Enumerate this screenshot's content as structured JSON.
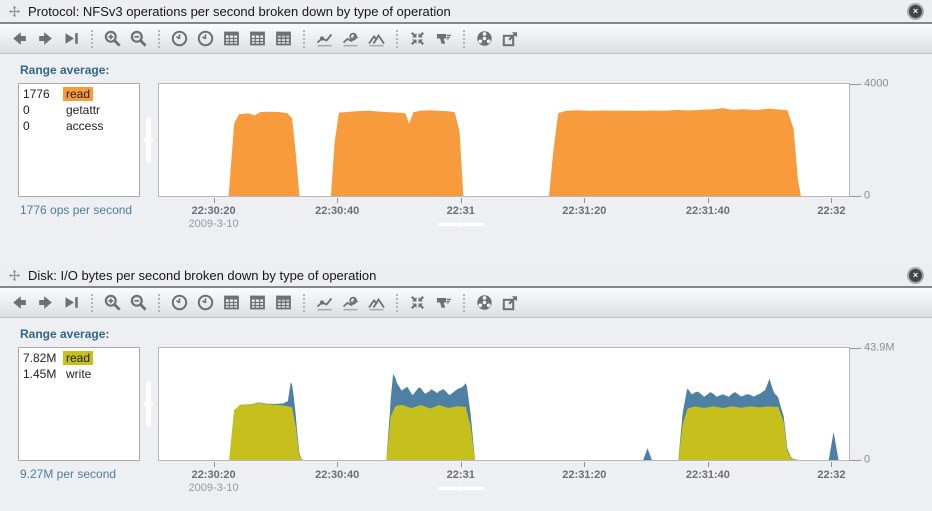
{
  "ui": {
    "close_glyph": "×"
  },
  "colors": {
    "nfs_read": "#F89B3C",
    "disk_read": "#C6C01C",
    "disk_write": "#4E80A4",
    "accent_text": "#336685",
    "summary_text": "#4E7E9B"
  },
  "toolbar": {
    "groups": [
      [
        {
          "name": "step-back",
          "icon": "arrow-left"
        },
        {
          "name": "step-forward",
          "icon": "arrow-right"
        },
        {
          "name": "forward-to-now",
          "icon": "arrow-end"
        }
      ],
      [
        {
          "name": "zoom-in",
          "icon": "magnifier-plus"
        },
        {
          "name": "zoom-out",
          "icon": "magnifier-minus"
        }
      ],
      [
        {
          "name": "show-one-minute",
          "icon": "clock"
        },
        {
          "name": "show-one-hour",
          "icon": "clock"
        },
        {
          "name": "show-one-day",
          "icon": "calendar"
        },
        {
          "name": "show-one-week",
          "icon": "calendar"
        },
        {
          "name": "show-one-month",
          "icon": "calendar-shaded"
        }
      ],
      [
        {
          "name": "line-graph",
          "icon": "line-chart"
        },
        {
          "name": "outlier-elimination",
          "icon": "outlier-chart"
        },
        {
          "name": "mountain-graph",
          "icon": "mountain-chart"
        }
      ],
      [
        {
          "name": "crop-outliers",
          "icon": "collapse-arrows"
        },
        {
          "name": "drilldown",
          "icon": "drill"
        }
      ],
      [
        {
          "name": "percent-breakdown",
          "icon": "donut-chart"
        },
        {
          "name": "export",
          "icon": "export-arrow"
        }
      ]
    ]
  },
  "panels": [
    {
      "title": "Protocol: NFSv3 operations per second broken down by type of operation",
      "legend": {
        "header": "Range average:",
        "rows": [
          {
            "value": "1776",
            "label": "read",
            "highlight": "#F89B3C"
          },
          {
            "value": "0",
            "label": "getattr",
            "highlight": null
          },
          {
            "value": "0",
            "label": "access",
            "highlight": null
          }
        ],
        "summary": "1776 ops per second"
      }
    },
    {
      "title": "Disk: I/O bytes per second broken down by type of operation",
      "legend": {
        "header": "Range average:",
        "rows": [
          {
            "value": "7.82M",
            "label": "read",
            "highlight": "#C6C01C"
          },
          {
            "value": "1.45M",
            "label": "write",
            "highlight": null
          }
        ],
        "summary": "9.27M per second"
      }
    }
  ],
  "chart_data": [
    {
      "type": "area",
      "stacked": false,
      "title": "Protocol: NFSv3 operations per second broken down by type of operation",
      "ylabel": "ops per second",
      "ylim": [
        0,
        4000
      ],
      "grid": false,
      "legend_position": "left",
      "y_ticks": [
        {
          "value": 4000,
          "label": "4000"
        },
        {
          "value": 0,
          "label": "0"
        }
      ],
      "x_unit": "seconds after 22:30:00, 2009-3-10",
      "x_range": [
        11,
        123
      ],
      "x_ticks": [
        {
          "t": 20,
          "label": "22:30:20",
          "sublabel": "2009-3-10",
          "has_handle": false
        },
        {
          "t": 40,
          "label": "22:30:40",
          "has_handle": false
        },
        {
          "t": 60,
          "label": "22:31",
          "has_handle": true
        },
        {
          "t": 80,
          "label": "22:31:20",
          "has_handle": false
        },
        {
          "t": 100,
          "label": "22:31:40",
          "has_handle": false
        },
        {
          "t": 120,
          "label": "22:32",
          "has_handle": false
        }
      ],
      "series": [
        {
          "name": "read",
          "color": "#F89B3C",
          "points": [
            [
              11,
              0
            ],
            [
              22.3,
              0
            ],
            [
              23.2,
              2600
            ],
            [
              24,
              2920
            ],
            [
              25.5,
              2950
            ],
            [
              26.5,
              2880
            ],
            [
              27.5,
              3000
            ],
            [
              29,
              3010
            ],
            [
              30.5,
              3000
            ],
            [
              31.8,
              2960
            ],
            [
              32.6,
              2780
            ],
            [
              33.2,
              1500
            ],
            [
              33.8,
              0
            ],
            [
              38.9,
              0
            ],
            [
              39.5,
              1900
            ],
            [
              40.2,
              2980
            ],
            [
              41.5,
              3000
            ],
            [
              43,
              3030
            ],
            [
              45,
              3050
            ],
            [
              47,
              3010
            ],
            [
              48.5,
              2990
            ],
            [
              50,
              2980
            ],
            [
              51,
              2950
            ],
            [
              51.6,
              2580
            ],
            [
              52.3,
              2990
            ],
            [
              53.5,
              3050
            ],
            [
              55,
              3060
            ],
            [
              56.5,
              3040
            ],
            [
              58,
              3030
            ],
            [
              59,
              2990
            ],
            [
              59.8,
              2300
            ],
            [
              60.4,
              0
            ],
            [
              74.3,
              0
            ],
            [
              75,
              1600
            ],
            [
              75.8,
              2960
            ],
            [
              77,
              3040
            ],
            [
              79,
              3060
            ],
            [
              81,
              3040
            ],
            [
              83,
              3055
            ],
            [
              85,
              3045
            ],
            [
              87,
              3050
            ],
            [
              89,
              3040
            ],
            [
              91,
              3055
            ],
            [
              93,
              3045
            ],
            [
              95,
              3070
            ],
            [
              97,
              3055
            ],
            [
              99,
              3080
            ],
            [
              101,
              3100
            ],
            [
              102.5,
              3140
            ],
            [
              104,
              3080
            ],
            [
              106,
              3100
            ],
            [
              108,
              3070
            ],
            [
              110,
              3120
            ],
            [
              111.5,
              3090
            ],
            [
              113,
              3060
            ],
            [
              114,
              2400
            ],
            [
              114.7,
              600
            ],
            [
              115.2,
              0
            ],
            [
              123,
              0
            ]
          ]
        }
      ]
    },
    {
      "type": "area",
      "stacked": true,
      "title": "Disk: I/O bytes per second broken down by type of operation",
      "ylabel": "bytes per second",
      "y_unit": "MB per second",
      "ylim": [
        0,
        43.9
      ],
      "grid": false,
      "legend_position": "left",
      "y_ticks": [
        {
          "value": 43.9,
          "label": "43.9M"
        },
        {
          "value": 0,
          "label": "0"
        }
      ],
      "x_unit": "seconds after 22:30:00, 2009-3-10",
      "x_range": [
        11,
        123
      ],
      "x_ticks": [
        {
          "t": 20,
          "label": "22:30:20",
          "sublabel": "2009-3-10",
          "has_handle": false
        },
        {
          "t": 40,
          "label": "22:30:40",
          "has_handle": false
        },
        {
          "t": 60,
          "label": "22:31",
          "has_handle": true
        },
        {
          "t": 80,
          "label": "22:31:20",
          "has_handle": false
        },
        {
          "t": 100,
          "label": "22:31:40",
          "has_handle": false
        },
        {
          "t": 120,
          "label": "22:32",
          "has_handle": false
        }
      ],
      "series": [
        {
          "name": "read",
          "color": "#C6C01C",
          "points": [
            [
              11,
              0
            ],
            [
              22.4,
              0
            ],
            [
              23.2,
              19.5
            ],
            [
              24.2,
              21.6
            ],
            [
              26,
              21.7
            ],
            [
              27.2,
              22.4
            ],
            [
              28.5,
              21.8
            ],
            [
              30,
              21.6
            ],
            [
              31.5,
              21.3
            ],
            [
              32.6,
              20.6
            ],
            [
              33.2,
              13
            ],
            [
              33.8,
              1.5
            ],
            [
              34.3,
              0
            ],
            [
              47.9,
              0
            ],
            [
              48.6,
              17
            ],
            [
              49.4,
              21.2
            ],
            [
              50.5,
              21.6
            ],
            [
              52,
              20.3
            ],
            [
              53.5,
              21.6
            ],
            [
              55,
              20.2
            ],
            [
              56.5,
              21.5
            ],
            [
              58,
              20.4
            ],
            [
              59.5,
              21.1
            ],
            [
              60.8,
              20.8
            ],
            [
              61.6,
              13
            ],
            [
              62.3,
              0
            ],
            [
              95.3,
              0
            ],
            [
              96,
              14
            ],
            [
              96.8,
              20.2
            ],
            [
              98,
              21
            ],
            [
              99.5,
              20.4
            ],
            [
              101,
              21
            ],
            [
              102.5,
              20.4
            ],
            [
              104,
              21
            ],
            [
              105.5,
              20.5
            ],
            [
              107,
              21
            ],
            [
              108.5,
              20.6
            ],
            [
              110,
              21
            ],
            [
              111.5,
              20.8
            ],
            [
              112.4,
              15
            ],
            [
              113,
              3.5
            ],
            [
              113.6,
              0.7
            ],
            [
              114.8,
              0
            ],
            [
              123,
              0
            ]
          ]
        },
        {
          "name": "write",
          "color": "#4E80A4",
          "points": [
            [
              11,
              0
            ],
            [
              22.4,
              0
            ],
            [
              28,
              0.2
            ],
            [
              30,
              0.4
            ],
            [
              31.2,
              0.8
            ],
            [
              31.9,
              2
            ],
            [
              32.4,
              9.8
            ],
            [
              32.9,
              7.5
            ],
            [
              33.4,
              2.5
            ],
            [
              34,
              0.3
            ],
            [
              34.3,
              0
            ],
            [
              47.9,
              0
            ],
            [
              48.5,
              4.5
            ],
            [
              49,
              14.6
            ],
            [
              49.6,
              9
            ],
            [
              50.4,
              5.6
            ],
            [
              51.3,
              7.8
            ],
            [
              52.2,
              5
            ],
            [
              53.2,
              7.2
            ],
            [
              54.2,
              5
            ],
            [
              55.2,
              7.4
            ],
            [
              56.2,
              5
            ],
            [
              57.2,
              6.8
            ],
            [
              58.2,
              5
            ],
            [
              59.2,
              6.4
            ],
            [
              60.2,
              7.6
            ],
            [
              61,
              9.8
            ],
            [
              61.7,
              4
            ],
            [
              62.3,
              0
            ],
            [
              89.6,
              0
            ],
            [
              90.3,
              4.6
            ],
            [
              91,
              0
            ],
            [
              95.3,
              0
            ],
            [
              96,
              4.5
            ],
            [
              96.7,
              8.2
            ],
            [
              97.5,
              5
            ],
            [
              98.5,
              6
            ],
            [
              99.5,
              4.4
            ],
            [
              100.5,
              5.8
            ],
            [
              101.5,
              4
            ],
            [
              102.5,
              5.4
            ],
            [
              103.5,
              4
            ],
            [
              104.5,
              5.8
            ],
            [
              105.5,
              4.4
            ],
            [
              106.5,
              5
            ],
            [
              107.5,
              4
            ],
            [
              108.5,
              5.4
            ],
            [
              109.4,
              6.6
            ],
            [
              110.1,
              10.8
            ],
            [
              110.8,
              5.6
            ],
            [
              111.8,
              3
            ],
            [
              112.5,
              2
            ],
            [
              113.2,
              0.6
            ],
            [
              114,
              0
            ],
            [
              119.7,
              0
            ],
            [
              120.5,
              11
            ],
            [
              121.3,
              0
            ],
            [
              123,
              0
            ]
          ]
        }
      ]
    }
  ]
}
